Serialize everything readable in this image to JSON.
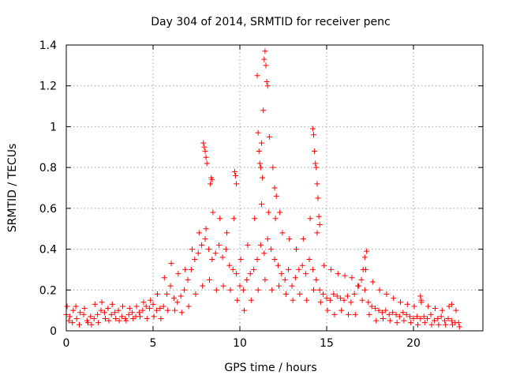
{
  "chart_data": {
    "type": "scatter",
    "title": "Day 304 of 2014, SRMTID for receiver penc",
    "xlabel": "GPS time / hours",
    "ylabel": "SRMTID / TECUs",
    "xlim": [
      0,
      24
    ],
    "ylim": [
      0,
      1.4
    ],
    "xticks": [
      0,
      5,
      10,
      15,
      20
    ],
    "yticks": [
      0,
      0.2,
      0.4,
      0.6,
      0.8,
      1,
      1.2,
      1.4
    ],
    "xtick_labels": [
      "0",
      "5",
      "10",
      "15",
      "20"
    ],
    "ytick_labels": [
      "0",
      "0.2",
      "0.4",
      "0.6",
      "0.8",
      "1",
      "1.2",
      "1.4"
    ],
    "grid": true,
    "marker": "+",
    "color": "#ff0000",
    "series": [
      {
        "name": "SRMTID",
        "x": [
          0.0,
          0.2,
          0.4,
          0.6,
          0.8,
          1.0,
          1.2,
          1.4,
          1.6,
          1.8,
          2.0,
          2.2,
          2.4,
          2.6,
          2.8,
          3.0,
          3.2,
          3.4,
          3.6,
          3.8,
          4.0,
          4.2,
          4.4,
          4.6,
          4.8,
          5.0,
          5.2,
          5.4,
          5.6,
          5.8,
          6.0,
          6.2,
          6.4,
          6.6,
          6.8,
          7.0,
          7.2,
          7.4,
          7.6,
          7.8,
          8.0,
          8.2,
          8.4,
          8.6,
          8.8,
          9.0,
          9.2,
          9.4,
          9.6,
          9.8,
          10.0,
          10.2,
          10.4,
          10.6,
          10.8,
          11.0,
          11.2,
          11.4,
          11.6,
          11.8,
          12.0,
          12.2,
          12.4,
          12.6,
          12.8,
          13.0,
          13.2,
          13.4,
          13.6,
          13.8,
          14.0,
          14.2,
          14.4,
          14.6,
          14.8,
          15.0,
          15.2,
          15.4,
          15.6,
          15.8,
          16.0,
          16.2,
          16.4,
          16.6,
          16.8,
          17.0,
          17.2,
          17.4,
          17.6,
          17.8,
          18.0,
          18.2,
          18.4,
          18.6,
          18.8,
          19.0,
          19.2,
          19.4,
          19.6,
          19.8,
          20.0,
          20.2,
          20.4,
          20.6,
          20.8,
          21.0,
          21.2,
          21.4,
          21.6,
          21.8,
          22.0,
          22.2,
          22.4,
          22.6,
          0.05,
          0.15,
          0.35,
          0.55,
          0.75,
          1.05,
          1.25,
          1.45,
          1.65,
          1.85,
          2.05,
          2.25,
          2.45,
          2.65,
          2.85,
          3.05,
          3.25,
          3.45,
          3.65,
          3.85,
          4.05,
          4.25,
          4.45,
          4.65,
          4.85,
          5.05,
          5.25,
          5.45,
          5.65,
          5.85,
          6.05,
          6.25,
          6.45,
          6.65,
          6.85,
          7.05,
          7.25,
          7.45,
          7.65,
          7.85,
          8.05,
          8.25,
          8.45,
          8.65,
          8.85,
          9.05,
          9.25,
          9.45,
          9.65,
          9.85,
          10.05,
          10.25,
          10.45,
          10.65,
          10.85,
          11.05,
          11.25,
          11.45,
          11.65,
          11.85,
          12.05,
          12.25,
          12.45,
          12.65,
          12.85,
          13.05,
          13.25,
          13.45,
          13.65,
          13.85,
          14.05,
          14.25,
          14.45,
          14.65,
          14.85,
          15.05,
          15.25,
          15.45,
          15.65,
          15.85,
          16.05,
          16.25,
          16.45,
          16.65,
          16.85,
          17.05,
          17.25,
          17.45,
          17.65,
          17.85,
          18.05,
          18.25,
          18.45,
          18.65,
          18.85,
          19.05,
          19.25,
          19.45,
          19.65,
          19.85,
          20.05,
          20.25,
          20.45,
          20.65,
          20.85,
          21.05,
          21.25,
          21.45,
          21.65,
          21.85,
          22.05,
          22.25,
          22.45,
          22.65,
          7.9,
          7.95,
          8.0,
          8.05,
          8.1,
          8.3,
          8.35,
          8.4,
          9.7,
          9.75,
          9.8,
          11.0,
          11.05,
          11.1,
          11.15,
          11.2,
          11.25,
          11.3,
          11.35,
          11.4,
          11.45,
          11.5,
          11.55,
          11.6,
          11.7,
          11.9,
          12.0,
          12.1,
          12.3,
          14.2,
          14.25,
          14.3,
          14.35,
          14.4,
          14.45,
          14.5,
          14.55,
          14.6,
          17.1,
          17.2,
          17.3,
          20.4,
          20.45,
          22.2
        ],
        "y": [
          0.08,
          0.07,
          0.1,
          0.06,
          0.09,
          0.08,
          0.05,
          0.07,
          0.06,
          0.08,
          0.1,
          0.09,
          0.11,
          0.08,
          0.09,
          0.1,
          0.07,
          0.06,
          0.08,
          0.09,
          0.07,
          0.09,
          0.1,
          0.12,
          0.11,
          0.13,
          0.1,
          0.11,
          0.12,
          0.18,
          0.22,
          0.16,
          0.14,
          0.17,
          0.2,
          0.25,
          0.3,
          0.35,
          0.38,
          0.42,
          0.45,
          0.4,
          0.35,
          0.38,
          0.42,
          0.36,
          0.4,
          0.32,
          0.3,
          0.28,
          0.22,
          0.2,
          0.25,
          0.28,
          0.3,
          0.35,
          0.42,
          0.38,
          0.45,
          0.4,
          0.35,
          0.32,
          0.28,
          0.25,
          0.3,
          0.22,
          0.26,
          0.3,
          0.32,
          0.28,
          0.35,
          0.3,
          0.25,
          0.2,
          0.18,
          0.16,
          0.15,
          0.18,
          0.17,
          0.16,
          0.15,
          0.17,
          0.14,
          0.18,
          0.22,
          0.25,
          0.2,
          0.14,
          0.12,
          0.11,
          0.1,
          0.09,
          0.1,
          0.08,
          0.09,
          0.08,
          0.07,
          0.09,
          0.08,
          0.07,
          0.06,
          0.07,
          0.06,
          0.07,
          0.06,
          0.08,
          0.05,
          0.06,
          0.07,
          0.05,
          0.06,
          0.05,
          0.04,
          0.04,
          0.12,
          0.05,
          0.04,
          0.12,
          0.03,
          0.11,
          0.04,
          0.03,
          0.13,
          0.04,
          0.14,
          0.06,
          0.05,
          0.13,
          0.06,
          0.05,
          0.12,
          0.05,
          0.11,
          0.06,
          0.12,
          0.07,
          0.14,
          0.06,
          0.15,
          0.07,
          0.18,
          0.06,
          0.26,
          0.1,
          0.33,
          0.1,
          0.28,
          0.09,
          0.3,
          0.12,
          0.4,
          0.18,
          0.48,
          0.22,
          0.5,
          0.25,
          0.58,
          0.2,
          0.55,
          0.22,
          0.48,
          0.2,
          0.55,
          0.15,
          0.35,
          0.1,
          0.42,
          0.15,
          0.55,
          0.2,
          0.62,
          0.25,
          0.58,
          0.2,
          0.55,
          0.22,
          0.48,
          0.18,
          0.45,
          0.15,
          0.4,
          0.18,
          0.45,
          0.15,
          0.55,
          0.2,
          0.48,
          0.14,
          0.32,
          0.1,
          0.3,
          0.08,
          0.28,
          0.1,
          0.27,
          0.08,
          0.26,
          0.08,
          0.22,
          0.15,
          0.3,
          0.08,
          0.24,
          0.05,
          0.2,
          0.06,
          0.18,
          0.05,
          0.16,
          0.04,
          0.14,
          0.05,
          0.13,
          0.04,
          0.12,
          0.03,
          0.14,
          0.04,
          0.12,
          0.03,
          0.11,
          0.03,
          0.1,
          0.03,
          0.12,
          0.03,
          0.1,
          0.02,
          0.92,
          0.9,
          0.88,
          0.85,
          0.82,
          0.72,
          0.75,
          0.74,
          0.78,
          0.76,
          0.72,
          1.25,
          0.97,
          0.88,
          0.82,
          0.8,
          0.92,
          0.75,
          1.08,
          1.33,
          1.37,
          1.3,
          1.22,
          1.2,
          0.95,
          0.8,
          0.7,
          0.66,
          0.58,
          0.99,
          0.96,
          0.88,
          0.82,
          0.8,
          0.72,
          0.65,
          0.56,
          0.52,
          0.3,
          0.36,
          0.39,
          0.17,
          0.15,
          0.13
        ]
      }
    ]
  }
}
